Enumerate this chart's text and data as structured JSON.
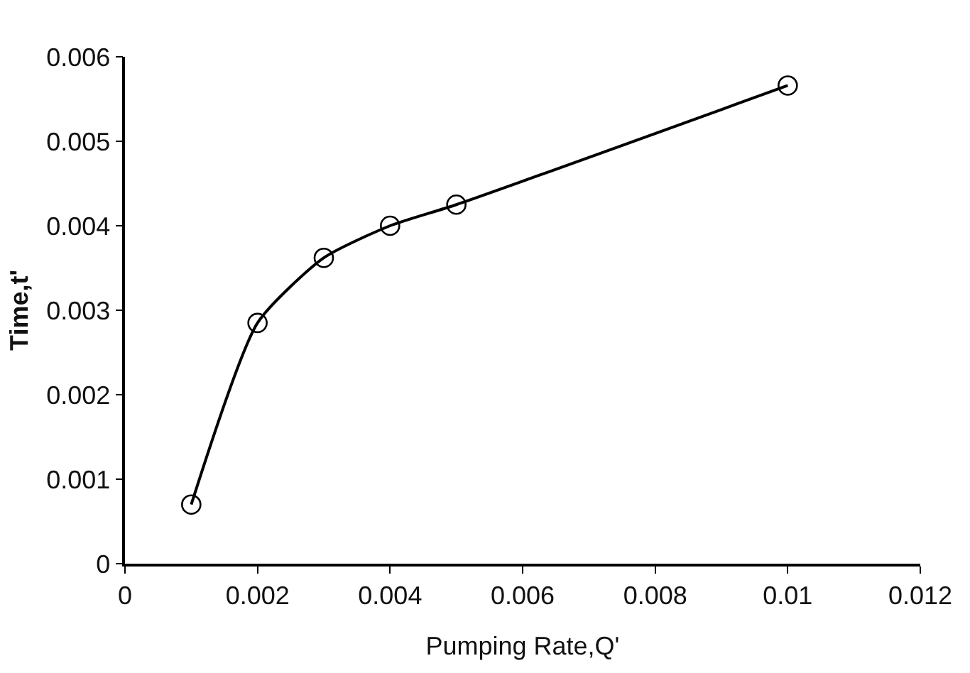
{
  "chart_data": {
    "type": "line",
    "xlabel": "Pumping Rate,Q'",
    "ylabel": "Time,t'",
    "x": [
      0.001,
      0.002,
      0.003,
      0.004,
      0.005,
      0.01
    ],
    "series": [
      {
        "color": "#000000",
        "values": [
          0.0007,
          0.00285,
          0.00362,
          0.004,
          0.00425,
          0.00566
        ]
      }
    ],
    "xlim": [
      0,
      0.012
    ],
    "xticks": [
      0,
      0.002,
      0.004,
      0.006,
      0.008,
      0.01,
      0.012
    ],
    "ylim": [
      0,
      0.006
    ],
    "yticks": [
      0,
      0.001,
      0.002,
      0.003,
      0.004,
      0.005,
      0.006
    ],
    "marker": "circle",
    "line_style": "solid"
  }
}
